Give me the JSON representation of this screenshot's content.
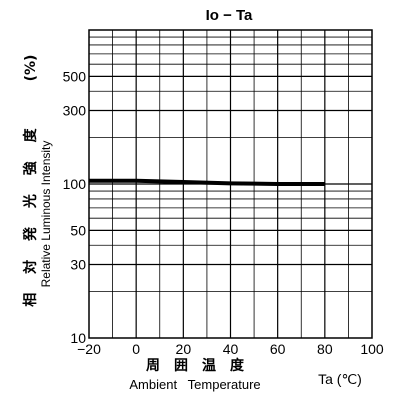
{
  "chart_data": {
    "type": "line",
    "title": "Io − Ta",
    "x_axis": {
      "label_jp": "周　囲　温　度",
      "label_en": "Ambient   Temperature",
      "unit_label": "Ta (℃)",
      "range": [
        -20,
        100
      ],
      "ticks": [
        -20,
        0,
        20,
        40,
        60,
        80,
        100
      ],
      "tick_labels": [
        "−20",
        "0",
        "20",
        "40",
        "60",
        "80",
        "100"
      ],
      "grid_step": 10
    },
    "y_axis": {
      "label_jp": "相 対 発 光 強 度",
      "label_en": "Relative Luminous Intensity",
      "unit": "(%)",
      "scale": "log",
      "range": [
        10,
        1000
      ],
      "ticks": [
        10,
        30,
        50,
        100,
        300,
        500
      ],
      "tick_labels": [
        "10",
        "30",
        "50",
        "100",
        "300",
        "500"
      ],
      "grid": [
        10,
        20,
        30,
        40,
        50,
        60,
        70,
        80,
        90,
        100,
        200,
        300,
        400,
        500,
        600,
        700,
        800,
        900,
        1000
      ]
    },
    "series": [
      {
        "x": [
          -20,
          0,
          20,
          40,
          60,
          80
        ],
        "y": [
          105,
          105,
          103,
          101,
          100,
          100
        ]
      }
    ],
    "grid": true
  }
}
